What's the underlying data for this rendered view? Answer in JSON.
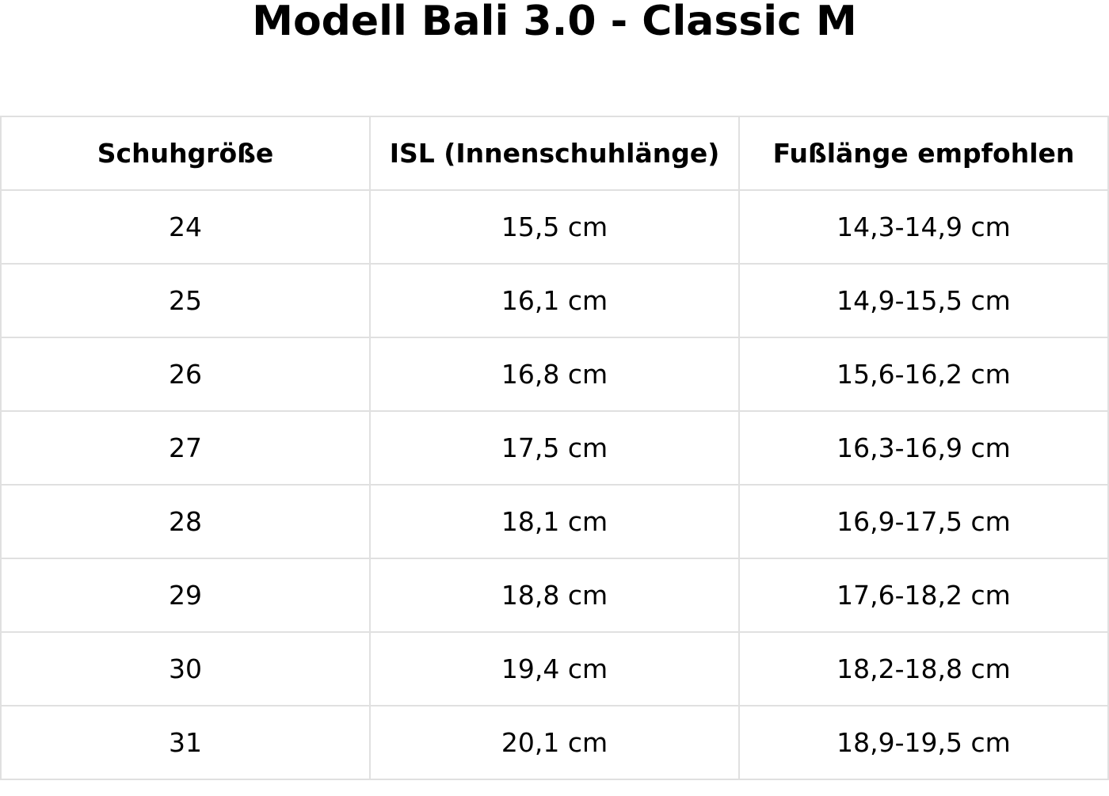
{
  "title": "Modell Bali 3.0 - Classic M",
  "table": {
    "headers": [
      "Schuhgröße",
      "ISL (Innenschuhlänge)",
      "Fußlänge empfohlen"
    ],
    "rows": [
      [
        "24",
        "15,5 cm",
        "14,3-14,9 cm"
      ],
      [
        "25",
        "16,1 cm",
        "14,9-15,5 cm"
      ],
      [
        "26",
        "16,8 cm",
        "15,6-16,2 cm"
      ],
      [
        "27",
        "17,5 cm",
        "16,3-16,9 cm"
      ],
      [
        "28",
        "18,1 cm",
        "16,9-17,5 cm"
      ],
      [
        "29",
        "18,8 cm",
        "17,6-18,2 cm"
      ],
      [
        "30",
        "19,4 cm",
        "18,2-18,8 cm"
      ],
      [
        "31",
        "20,1 cm",
        "18,9-19,5 cm"
      ]
    ]
  },
  "colors": {
    "border": "#e0e0e0",
    "text": "#000000"
  }
}
